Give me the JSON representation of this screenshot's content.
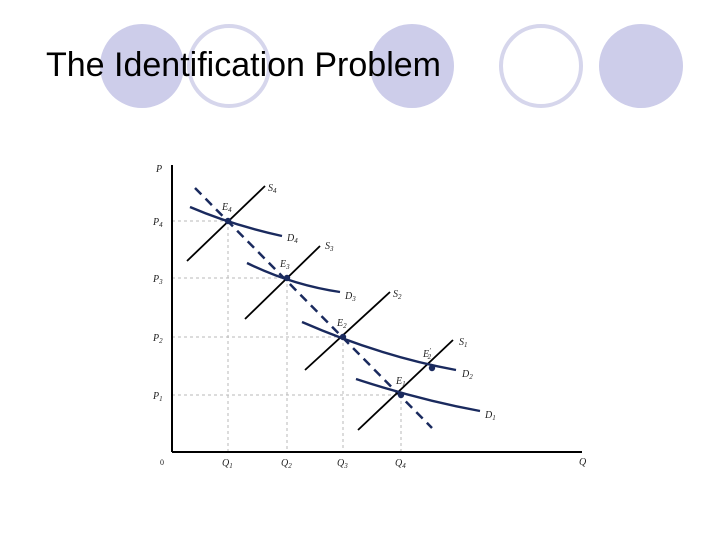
{
  "slide": {
    "title": "The Identification Problem",
    "palette": {
      "circle_fill": "#cdcdea",
      "circle_ring": "#d6d6ec",
      "demand": "#1a2a5e",
      "supply": "#000000",
      "guide": "#b8b8b8"
    }
  },
  "diagram": {
    "axis": {
      "y": "P",
      "x": "Q",
      "origin": "0"
    },
    "price_levels": [
      {
        "base": "P",
        "sub": "4"
      },
      {
        "base": "P",
        "sub": "3"
      },
      {
        "base": "P",
        "sub": "2"
      },
      {
        "base": "P",
        "sub": "1"
      }
    ],
    "quantity_levels": [
      {
        "base": "Q",
        "sub": "1"
      },
      {
        "base": "Q",
        "sub": "2"
      },
      {
        "base": "Q",
        "sub": "3"
      },
      {
        "base": "Q",
        "sub": "4"
      }
    ],
    "supply_curves": [
      {
        "base": "S",
        "sub": "4"
      },
      {
        "base": "S",
        "sub": "3"
      },
      {
        "base": "S",
        "sub": "2"
      },
      {
        "base": "S",
        "sub": "1"
      }
    ],
    "demand_curves": [
      {
        "base": "D",
        "sub": "4"
      },
      {
        "base": "D",
        "sub": "3"
      },
      {
        "base": "D",
        "sub": "2"
      },
      {
        "base": "D",
        "sub": "1"
      }
    ],
    "equilibria": [
      {
        "base": "E",
        "sub": "4"
      },
      {
        "base": "E",
        "sub": "3"
      },
      {
        "base": "E",
        "sub": "2"
      },
      {
        "base": "E",
        "sub": "1"
      }
    ],
    "alt_equilibrium": {
      "base": "E",
      "sub": "2",
      "sup": "′"
    }
  }
}
